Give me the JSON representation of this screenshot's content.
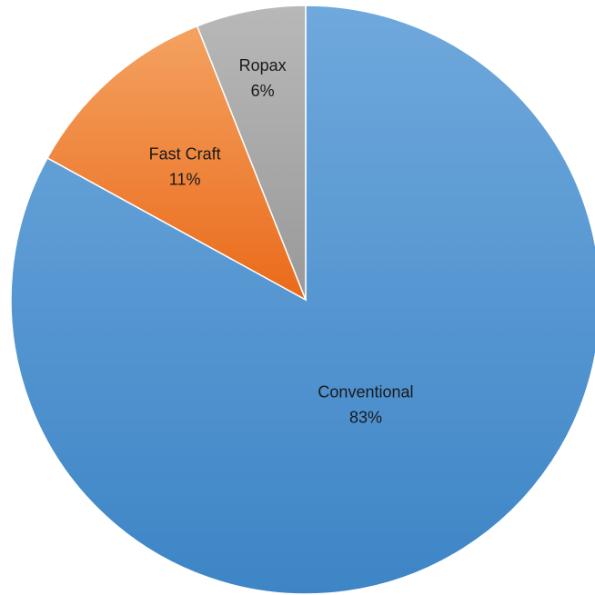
{
  "chart_data": {
    "type": "pie",
    "title": "",
    "start_angle_deg": 0,
    "direction": "clockwise",
    "slices": [
      {
        "label": "Conventional",
        "value": 83,
        "display": "83%",
        "color": "#5b9bd5"
      },
      {
        "label": "Fast Craft",
        "value": 11,
        "display": "11%",
        "color": "#ed7d31"
      },
      {
        "label": "Ropax",
        "value": 6,
        "display": "6%",
        "color": "#a5a5a5"
      }
    ],
    "legend": "none",
    "data_labels": "category-and-percent"
  }
}
